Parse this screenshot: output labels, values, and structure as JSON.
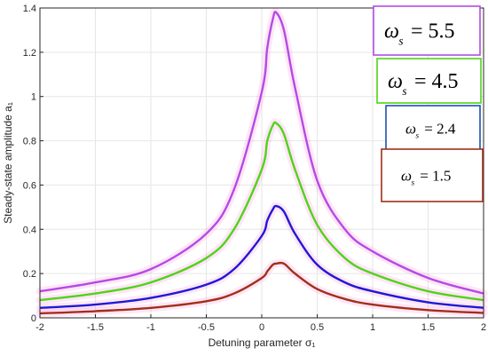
{
  "chart_data": {
    "type": "line",
    "xlabel": "Detuning parameter σ₁",
    "ylabel": "Steady-state amplitude a₁",
    "xlim": [
      -2,
      2
    ],
    "ylim": [
      0,
      1.4
    ],
    "xticks": [
      "-2",
      "-1.5",
      "-1",
      "-0.5",
      "0",
      "0.5",
      "1",
      "1.5",
      "2"
    ],
    "yticks": [
      "0",
      "0.2",
      "0.4",
      "0.6",
      "0.8",
      "1",
      "1.2",
      "1.4"
    ],
    "grid": true,
    "x": [
      -2,
      -1.5,
      -1,
      -0.5,
      -0.25,
      0,
      0.05,
      0.1,
      0.13,
      0.2,
      0.3,
      0.5,
      0.75,
      1,
      1.5,
      2
    ],
    "series": [
      {
        "label": "ωs = 5.5",
        "color": "#b44be6",
        "values": [
          0.12,
          0.16,
          0.22,
          0.38,
          0.58,
          1.02,
          1.22,
          1.35,
          1.38,
          1.3,
          1.04,
          0.62,
          0.4,
          0.3,
          0.18,
          0.11
        ]
      },
      {
        "label": "ωs = 4.5",
        "color": "#4fd418",
        "values": [
          0.08,
          0.11,
          0.16,
          0.27,
          0.4,
          0.67,
          0.8,
          0.87,
          0.88,
          0.83,
          0.67,
          0.42,
          0.27,
          0.2,
          0.12,
          0.08
        ]
      },
      {
        "label": "ωs = 2.4",
        "color": "#1f19d6",
        "values": [
          0.045,
          0.06,
          0.09,
          0.15,
          0.22,
          0.37,
          0.44,
          0.49,
          0.505,
          0.48,
          0.38,
          0.24,
          0.16,
          0.12,
          0.07,
          0.045
        ]
      },
      {
        "label": "ωs = 1.5",
        "color": "#a0301a",
        "values": [
          0.02,
          0.03,
          0.045,
          0.075,
          0.11,
          0.18,
          0.21,
          0.24,
          0.245,
          0.245,
          0.2,
          0.13,
          0.085,
          0.06,
          0.035,
          0.022
        ]
      }
    ],
    "legend": [
      {
        "symbol": "ω",
        "sub": "s",
        "text": "= 5.5",
        "color": "#b44be6",
        "size": "large"
      },
      {
        "symbol": "ω",
        "sub": "s",
        "text": "= 4.5",
        "color": "#4fd418",
        "size": "large"
      },
      {
        "symbol": "ω",
        "sub": "s",
        "text": "= 2.4",
        "color": "#1f4fb0",
        "size": "small"
      },
      {
        "symbol": "ω",
        "sub": "s",
        "text": "= 1.5",
        "color": "#a0301a",
        "size": "small"
      }
    ],
    "legend_placement": "right"
  }
}
